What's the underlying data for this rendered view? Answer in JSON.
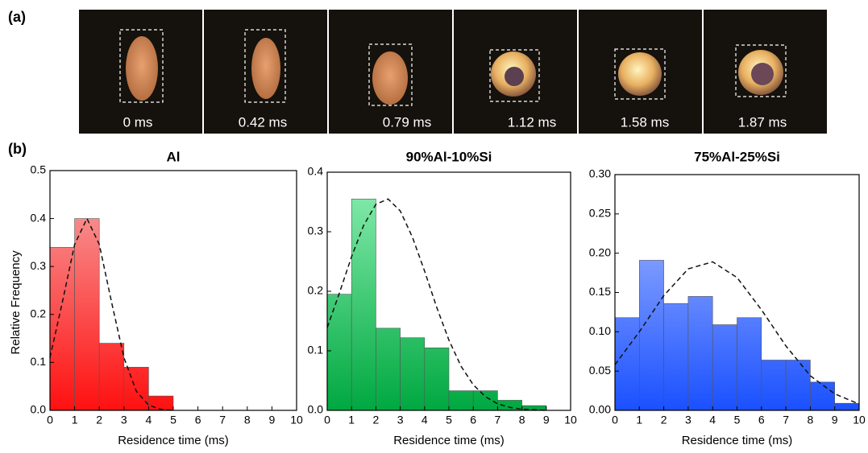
{
  "panel_labels": [
    "(a)",
    "(b)"
  ],
  "frames": [
    {
      "label": "0 ms"
    },
    {
      "label": "0.42 ms"
    },
    {
      "label": "0.79 ms"
    },
    {
      "label": "1.12 ms"
    },
    {
      "label": "1.58 ms"
    },
    {
      "label": "1.87 ms"
    }
  ],
  "chart_data": [
    {
      "type": "histogram",
      "title": "Al",
      "xlabel": "Residence time (ms)",
      "ylabel": "Relative Frequency",
      "bins": [
        0,
        1,
        2,
        3,
        4,
        5,
        6,
        7,
        8,
        9,
        10
      ],
      "values": [
        0.34,
        0.4,
        0.14,
        0.09,
        0.03,
        0,
        0,
        0,
        0,
        0
      ],
      "color": "#ff1010",
      "color_light": "#f6a8a8",
      "fit_x": [
        0,
        0.5,
        1,
        1.5,
        2,
        2.5,
        3,
        3.5,
        4,
        4.5,
        5
      ],
      "fit": [
        0.11,
        0.225,
        0.346,
        0.4,
        0.346,
        0.225,
        0.11,
        0.04,
        0.011,
        0.002,
        0
      ],
      "xlim": [
        0,
        10
      ],
      "xticks": [
        0,
        1,
        2,
        3,
        4,
        5,
        6,
        7,
        8,
        9,
        10
      ],
      "ylim": [
        0,
        0.5
      ],
      "yticks": [
        {
          "value": 0,
          "label": "0.0"
        },
        0.1,
        0.2,
        0.3,
        0.4,
        0.5
      ]
    },
    {
      "type": "histogram",
      "title": "90%Al-10%Si",
      "xlabel": "Residence time (ms)",
      "bins": [
        0,
        1,
        2,
        3,
        4,
        5,
        6,
        7,
        8,
        9,
        10
      ],
      "values": [
        0.195,
        0.355,
        0.138,
        0.122,
        0.105,
        0.033,
        0.033,
        0.017,
        0.008,
        0
      ],
      "color": "#00a840",
      "color_light": "#8ef0b4",
      "fit_x": [
        0,
        0.5,
        1,
        1.5,
        2,
        2.5,
        3,
        3.5,
        4,
        4.5,
        5,
        5.5,
        6,
        6.5,
        7,
        7.5,
        8,
        8.5,
        9
      ],
      "fit": [
        0.139,
        0.197,
        0.258,
        0.311,
        0.346,
        0.355,
        0.335,
        0.291,
        0.234,
        0.173,
        0.118,
        0.074,
        0.043,
        0.023,
        0.011,
        0.005,
        0.002,
        0.001,
        0
      ],
      "xlim": [
        0,
        10
      ],
      "xticks": [
        0,
        1,
        2,
        3,
        4,
        5,
        6,
        7,
        8,
        9,
        10
      ],
      "ylim": [
        0,
        0.4
      ],
      "yticks": [
        {
          "value": 0,
          "label": "0.0"
        },
        0.1,
        0.2,
        0.3,
        0.4
      ]
    },
    {
      "type": "histogram",
      "title": "75%Al-25%Si",
      "xlabel": "Residence time (ms)",
      "bins": [
        0,
        1,
        2,
        3,
        4,
        5,
        6,
        7,
        8,
        9,
        10
      ],
      "values": [
        0.118,
        0.191,
        0.136,
        0.145,
        0.109,
        0.118,
        0.064,
        0.064,
        0.036,
        0.009
      ],
      "color": "#1a50ff",
      "color_light": "#b2c4ff",
      "fit_x": [
        0,
        1,
        2,
        3,
        4,
        5,
        6,
        7,
        8,
        9,
        10
      ],
      "fit": [
        0.058,
        0.1,
        0.146,
        0.18,
        0.189,
        0.169,
        0.128,
        0.082,
        0.044,
        0.021,
        0.008
      ],
      "xlim": [
        0,
        10
      ],
      "xticks": [
        0,
        1,
        2,
        3,
        4,
        5,
        6,
        7,
        8,
        9,
        10
      ],
      "ylim": [
        0,
        0.3
      ],
      "yticks": [
        {
          "value": 0,
          "label": "0.00"
        },
        {
          "value": 0.05,
          "label": "0.05"
        },
        {
          "value": 0.1,
          "label": "0.10"
        },
        {
          "value": 0.15,
          "label": "0.15"
        },
        {
          "value": 0.2,
          "label": "0.20"
        },
        {
          "value": 0.25,
          "label": "0.25"
        },
        {
          "value": 0.3,
          "label": "0.30"
        }
      ]
    }
  ]
}
